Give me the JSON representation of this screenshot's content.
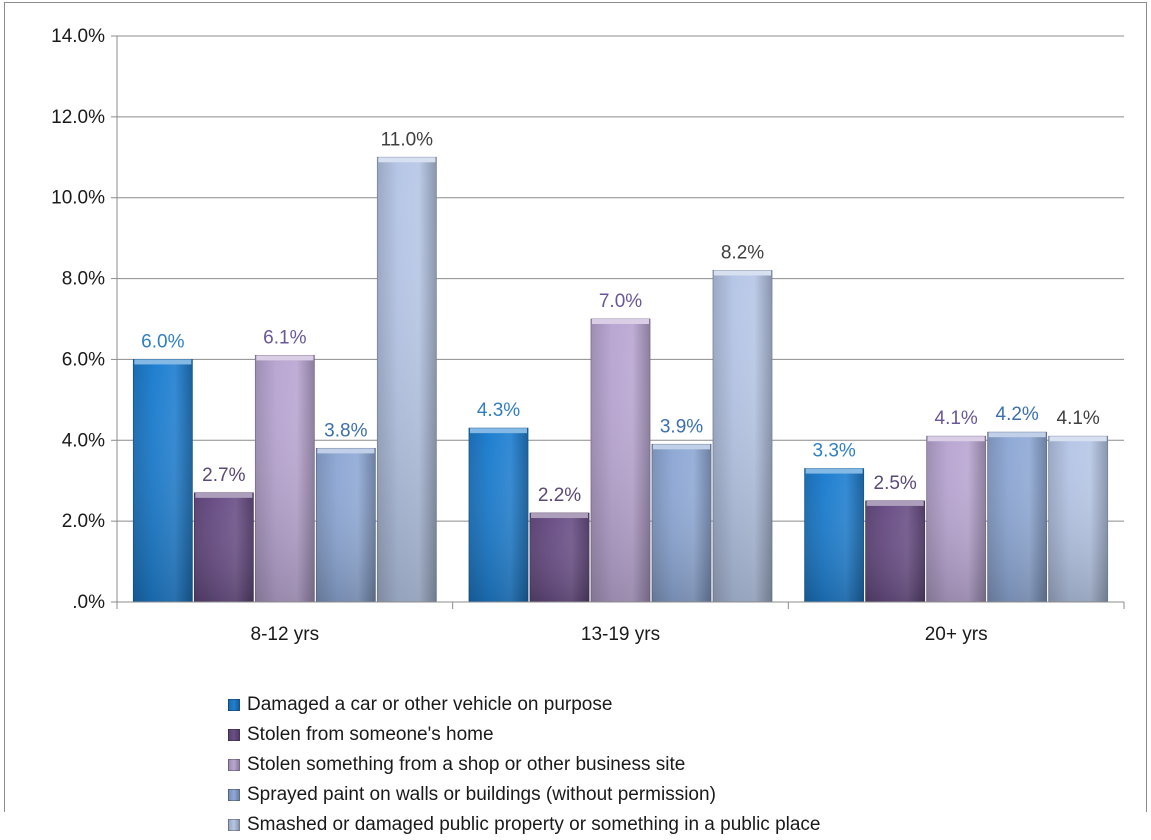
{
  "chart_data": {
    "type": "bar",
    "categories": [
      "8-12 yrs",
      "13-19 yrs",
      "20+ yrs"
    ],
    "ylim": [
      0,
      14
    ],
    "y_ticks": [
      ".0%",
      "2.0%",
      "4.0%",
      "6.0%",
      "8.0%",
      "10.0%",
      "12.0%",
      "14.0%"
    ],
    "y_tick_values": [
      0,
      2,
      4,
      6,
      8,
      10,
      12,
      14
    ],
    "grid": true,
    "legend_position": "bottom",
    "series": [
      {
        "name": "Damaged a car or other vehicle on purpose",
        "values": [
          6.0,
          4.3,
          3.3
        ],
        "labels": [
          "6.0%",
          "4.3%",
          "3.3%"
        ],
        "color": "#1f7fd0",
        "label_color": "#2f7fc4"
      },
      {
        "name": "Stolen from someone's home",
        "values": [
          2.7,
          2.2,
          2.5
        ],
        "labels": [
          "2.7%",
          "2.2%",
          "2.5%"
        ],
        "color": "#6a4f86",
        "label_color": "#5a4876"
      },
      {
        "name": "Stolen something from a shop or other business site",
        "values": [
          6.1,
          7.0,
          4.1
        ],
        "labels": [
          "6.1%",
          "7.0%",
          "4.1%"
        ],
        "color": "#b9a6d2",
        "label_color": "#6a569a"
      },
      {
        "name": "Sprayed paint on walls or buildings (without permission)",
        "values": [
          3.8,
          3.9,
          4.2
        ],
        "labels": [
          "3.8%",
          "3.9%",
          "4.2%"
        ],
        "color": "#8fa9d6",
        "label_color": "#3c6fb0"
      },
      {
        "name": "Smashed or damaged public property or something in a public place",
        "values": [
          11.0,
          8.2,
          4.1
        ],
        "labels": [
          "11.0%",
          "8.2%",
          "4.1%"
        ],
        "color": "#b6c6e6",
        "label_color": "#404040"
      }
    ]
  }
}
